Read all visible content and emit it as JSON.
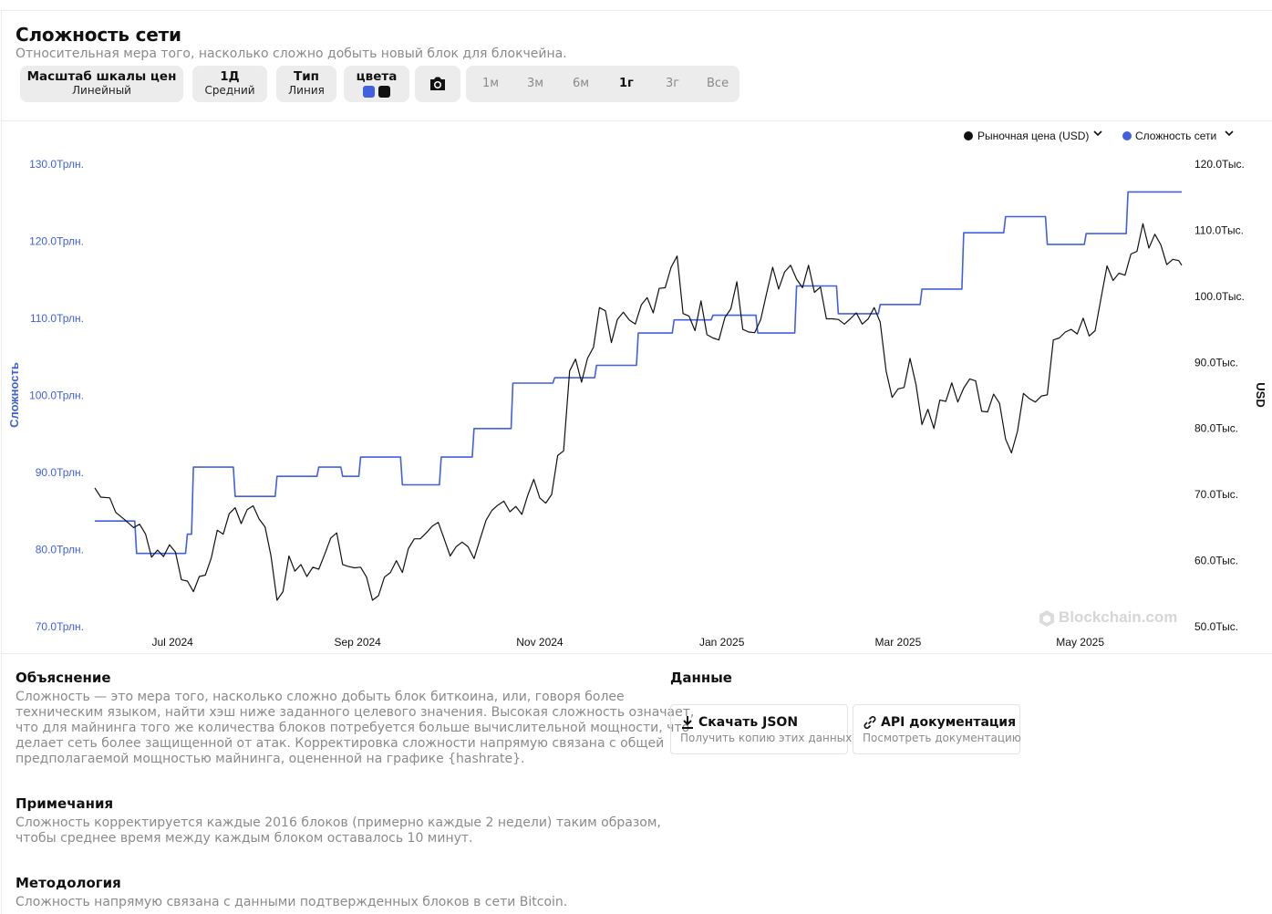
{
  "header": {
    "title": "Сложность сети",
    "subtitle": "Относительная мера того, насколько сложно добыть новый блок для блокчейна."
  },
  "controls": {
    "scale": {
      "label": "Масштаб шкалы цен",
      "value": "Линейный"
    },
    "period": {
      "label": "1Д",
      "value": "Средний"
    },
    "type": {
      "label": "Тип",
      "value": "Линия"
    },
    "colors": {
      "label": "цвета",
      "swatches": [
        "#4060e0",
        "#111111"
      ]
    },
    "camera_icon": "camera-icon",
    "ranges": [
      "1м",
      "3м",
      "6м",
      "1г",
      "3г",
      "Все"
    ],
    "active_range": "1г"
  },
  "legend": {
    "price": "Рыночная цена (USD)",
    "difficulty": "Сложность сети",
    "price_color": "#111111",
    "difficulty_color": "#4060e0"
  },
  "watermark": "Blockchain.com",
  "chart_data": {
    "type": "line",
    "x_ticks": [
      "Jul 2024",
      "Sep 2024",
      "Nov 2024",
      "Jan 2025",
      "Mar 2025",
      "May 2025"
    ],
    "x_range": [
      "2024-06-05",
      "2025-06-04"
    ],
    "grid": false,
    "legend_placement": "top-right",
    "left_axis": {
      "label": "Сложность",
      "unit": "Трлн.",
      "ticks": [
        "70.0Трлн.",
        "80.0Трлн.",
        "90.0Трлн.",
        "100.0Трлн.",
        "110.0Трлн.",
        "120.0Трлн.",
        "130.0Трлн."
      ],
      "range": [
        70,
        130
      ]
    },
    "right_axis": {
      "label": "USD",
      "unit": "Тыс.",
      "ticks": [
        "50.0Тыс.",
        "60.0Тыс.",
        "70.0Тыс.",
        "80.0Тыс.",
        "90.0Тыс.",
        "100.0Тыс.",
        "110.0Тыс.",
        "120.0Тыс."
      ],
      "range": [
        50,
        120
      ]
    },
    "series": [
      {
        "name": "Сложность сети",
        "axis": "left",
        "color": "#4060e0",
        "step": true,
        "points": [
          [
            "2024-06-05",
            83.7
          ],
          [
            "2024-06-19",
            79.5
          ],
          [
            "2024-07-06",
            82.0
          ],
          [
            "2024-07-08",
            90.7
          ],
          [
            "2024-07-22",
            86.9
          ],
          [
            "2024-08-05",
            89.5
          ],
          [
            "2024-08-19",
            90.7
          ],
          [
            "2024-08-27",
            89.5
          ],
          [
            "2024-09-02",
            92.0
          ],
          [
            "2024-09-16",
            88.4
          ],
          [
            "2024-09-29",
            92.0
          ],
          [
            "2024-10-10",
            95.7
          ],
          [
            "2024-10-23",
            101.6
          ],
          [
            "2024-11-06",
            102.3
          ],
          [
            "2024-11-20",
            103.9
          ],
          [
            "2024-12-04",
            108.1
          ],
          [
            "2024-12-16",
            109.8
          ],
          [
            "2024-12-29",
            110.4
          ],
          [
            "2025-01-13",
            108.1
          ],
          [
            "2025-01-26",
            114.2
          ],
          [
            "2025-02-09",
            110.6
          ],
          [
            "2025-02-23",
            111.8
          ],
          [
            "2025-03-09",
            113.8
          ],
          [
            "2025-03-23",
            121.1
          ],
          [
            "2025-04-06",
            123.2
          ],
          [
            "2025-04-20",
            119.6
          ],
          [
            "2025-05-03",
            121.0
          ],
          [
            "2025-05-17",
            126.4
          ],
          [
            "2025-06-04",
            126.4
          ]
        ]
      },
      {
        "name": "Рыночная цена (USD)",
        "axis": "right",
        "color": "#111111",
        "step": false,
        "points": [
          [
            "2024-06-05",
            71.0
          ],
          [
            "2024-06-07",
            69.6
          ],
          [
            "2024-06-10",
            69.5
          ],
          [
            "2024-06-12",
            67.3
          ],
          [
            "2024-06-15",
            66.2
          ],
          [
            "2024-06-18",
            65.0
          ],
          [
            "2024-06-20",
            65.5
          ],
          [
            "2024-06-22",
            64.0
          ],
          [
            "2024-06-24",
            60.5
          ],
          [
            "2024-06-26",
            61.6
          ],
          [
            "2024-06-28",
            60.6
          ],
          [
            "2024-06-30",
            62.4
          ],
          [
            "2024-07-02",
            61.3
          ],
          [
            "2024-07-04",
            57.1
          ],
          [
            "2024-07-06",
            56.9
          ],
          [
            "2024-07-08",
            55.3
          ],
          [
            "2024-07-10",
            57.6
          ],
          [
            "2024-07-12",
            57.8
          ],
          [
            "2024-07-14",
            60.4
          ],
          [
            "2024-07-16",
            64.6
          ],
          [
            "2024-07-18",
            64.0
          ],
          [
            "2024-07-20",
            67.1
          ],
          [
            "2024-07-22",
            68.0
          ],
          [
            "2024-07-24",
            65.6
          ],
          [
            "2024-07-26",
            67.7
          ],
          [
            "2024-07-28",
            68.3
          ],
          [
            "2024-07-30",
            66.3
          ],
          [
            "2024-08-01",
            65.1
          ],
          [
            "2024-08-03",
            60.7
          ],
          [
            "2024-08-05",
            54.0
          ],
          [
            "2024-08-07",
            55.3
          ],
          [
            "2024-08-09",
            60.7
          ],
          [
            "2024-08-11",
            58.4
          ],
          [
            "2024-08-13",
            59.4
          ],
          [
            "2024-08-15",
            57.6
          ],
          [
            "2024-08-17",
            59.0
          ],
          [
            "2024-08-19",
            58.7
          ],
          [
            "2024-08-21",
            61.0
          ],
          [
            "2024-08-23",
            63.4
          ],
          [
            "2024-08-25",
            64.2
          ],
          [
            "2024-08-27",
            59.4
          ],
          [
            "2024-08-29",
            59.1
          ],
          [
            "2024-08-31",
            58.9
          ],
          [
            "2024-09-02",
            59.0
          ],
          [
            "2024-09-04",
            57.5
          ],
          [
            "2024-09-06",
            54.0
          ],
          [
            "2024-09-08",
            54.7
          ],
          [
            "2024-09-10",
            57.5
          ],
          [
            "2024-09-12",
            58.2
          ],
          [
            "2024-09-14",
            60.0
          ],
          [
            "2024-09-16",
            58.2
          ],
          [
            "2024-09-18",
            61.8
          ],
          [
            "2024-09-20",
            63.3
          ],
          [
            "2024-09-22",
            63.3
          ],
          [
            "2024-09-24",
            64.2
          ],
          [
            "2024-09-26",
            65.2
          ],
          [
            "2024-09-28",
            65.8
          ],
          [
            "2024-09-30",
            63.3
          ],
          [
            "2024-10-02",
            60.7
          ],
          [
            "2024-10-04",
            62.1
          ],
          [
            "2024-10-06",
            62.8
          ],
          [
            "2024-10-08",
            62.1
          ],
          [
            "2024-10-10",
            60.3
          ],
          [
            "2024-10-12",
            63.2
          ],
          [
            "2024-10-14",
            66.1
          ],
          [
            "2024-10-16",
            67.6
          ],
          [
            "2024-10-18",
            68.4
          ],
          [
            "2024-10-20",
            69.0
          ],
          [
            "2024-10-22",
            67.4
          ],
          [
            "2024-10-24",
            68.2
          ],
          [
            "2024-10-26",
            67.0
          ],
          [
            "2024-10-28",
            69.9
          ],
          [
            "2024-10-30",
            72.3
          ],
          [
            "2024-11-01",
            69.5
          ],
          [
            "2024-11-03",
            68.7
          ],
          [
            "2024-11-05",
            70.0
          ],
          [
            "2024-11-07",
            75.9
          ],
          [
            "2024-11-09",
            76.6
          ],
          [
            "2024-11-11",
            88.7
          ],
          [
            "2024-11-13",
            90.5
          ],
          [
            "2024-11-15",
            87.0
          ],
          [
            "2024-11-17",
            90.6
          ],
          [
            "2024-11-19",
            92.3
          ],
          [
            "2024-11-21",
            98.3
          ],
          [
            "2024-11-23",
            97.8
          ],
          [
            "2024-11-25",
            93.0
          ],
          [
            "2024-11-27",
            96.5
          ],
          [
            "2024-11-29",
            97.6
          ],
          [
            "2024-12-01",
            96.4
          ],
          [
            "2024-12-03",
            95.8
          ],
          [
            "2024-12-05",
            98.7
          ],
          [
            "2024-12-07",
            99.8
          ],
          [
            "2024-12-09",
            97.5
          ],
          [
            "2024-12-11",
            101.2
          ],
          [
            "2024-12-13",
            101.3
          ],
          [
            "2024-12-15",
            104.4
          ],
          [
            "2024-12-17",
            106.1
          ],
          [
            "2024-12-19",
            97.4
          ],
          [
            "2024-12-21",
            97.0
          ],
          [
            "2024-12-23",
            94.8
          ],
          [
            "2024-12-25",
            99.3
          ],
          [
            "2024-12-27",
            94.2
          ],
          [
            "2024-12-29",
            93.7
          ],
          [
            "2024-12-31",
            93.4
          ],
          [
            "2025-01-02",
            96.8
          ],
          [
            "2025-01-04",
            98.1
          ],
          [
            "2025-01-06",
            102.2
          ],
          [
            "2025-01-08",
            95.0
          ],
          [
            "2025-01-10",
            94.6
          ],
          [
            "2025-01-12",
            94.5
          ],
          [
            "2025-01-14",
            96.5
          ],
          [
            "2025-01-16",
            100.5
          ],
          [
            "2025-01-18",
            104.4
          ],
          [
            "2025-01-20",
            101.1
          ],
          [
            "2025-01-22",
            103.7
          ],
          [
            "2025-01-24",
            104.7
          ],
          [
            "2025-01-26",
            102.6
          ],
          [
            "2025-01-28",
            101.3
          ],
          [
            "2025-01-30",
            104.7
          ],
          [
            "2025-02-01",
            100.6
          ],
          [
            "2025-02-03",
            101.4
          ],
          [
            "2025-02-05",
            96.6
          ],
          [
            "2025-02-07",
            96.6
          ],
          [
            "2025-02-09",
            96.5
          ],
          [
            "2025-02-11",
            95.8
          ],
          [
            "2025-02-13",
            96.6
          ],
          [
            "2025-02-15",
            97.5
          ],
          [
            "2025-02-17",
            95.8
          ],
          [
            "2025-02-19",
            96.6
          ],
          [
            "2025-02-21",
            98.3
          ],
          [
            "2025-02-23",
            96.1
          ],
          [
            "2025-02-25",
            88.7
          ],
          [
            "2025-02-27",
            84.7
          ],
          [
            "2025-03-01",
            86.0
          ],
          [
            "2025-03-03",
            86.2
          ],
          [
            "2025-03-05",
            90.6
          ],
          [
            "2025-03-07",
            86.7
          ],
          [
            "2025-03-09",
            80.6
          ],
          [
            "2025-03-11",
            82.9
          ],
          [
            "2025-03-13",
            80.0
          ],
          [
            "2025-03-15",
            84.3
          ],
          [
            "2025-03-17",
            84.1
          ],
          [
            "2025-03-19",
            86.9
          ],
          [
            "2025-03-21",
            84.0
          ],
          [
            "2025-03-23",
            86.1
          ],
          [
            "2025-03-25",
            87.5
          ],
          [
            "2025-03-27",
            87.2
          ],
          [
            "2025-03-29",
            82.6
          ],
          [
            "2025-03-31",
            82.5
          ],
          [
            "2025-04-02",
            85.2
          ],
          [
            "2025-04-04",
            83.8
          ],
          [
            "2025-04-06",
            78.4
          ],
          [
            "2025-04-08",
            76.3
          ],
          [
            "2025-04-10",
            79.6
          ],
          [
            "2025-04-12",
            85.3
          ],
          [
            "2025-04-14",
            84.5
          ],
          [
            "2025-04-16",
            84.0
          ],
          [
            "2025-04-18",
            84.9
          ],
          [
            "2025-04-20",
            85.1
          ],
          [
            "2025-04-22",
            93.4
          ],
          [
            "2025-04-24",
            93.7
          ],
          [
            "2025-04-26",
            94.6
          ],
          [
            "2025-04-28",
            95.0
          ],
          [
            "2025-04-30",
            94.3
          ],
          [
            "2025-05-02",
            96.7
          ],
          [
            "2025-05-04",
            94.0
          ],
          [
            "2025-05-06",
            94.8
          ],
          [
            "2025-05-08",
            99.8
          ],
          [
            "2025-05-10",
            104.6
          ],
          [
            "2025-05-12",
            102.4
          ],
          [
            "2025-05-14",
            103.5
          ],
          [
            "2025-05-16",
            103.2
          ],
          [
            "2025-05-18",
            106.4
          ],
          [
            "2025-05-20",
            106.8
          ],
          [
            "2025-05-22",
            111.0
          ],
          [
            "2025-05-24",
            107.3
          ],
          [
            "2025-05-26",
            109.4
          ],
          [
            "2025-05-28",
            107.8
          ],
          [
            "2025-05-30",
            104.8
          ],
          [
            "2025-06-01",
            105.6
          ],
          [
            "2025-06-03",
            105.4
          ],
          [
            "2025-06-04",
            104.7
          ]
        ]
      }
    ]
  },
  "sections": {
    "explanation": {
      "title": "Объяснение",
      "lines": [
        "Сложность — это мера того, насколько сложно добыть блок биткоина, или, говоря более",
        "техническим языком, найти хэш ниже заданного целевого значения. Высокая сложность означает,",
        "что для майнинга того же количества блоков потребуется больше вычислительной мощности, что",
        "делает сеть более защищенной от атак. Корректировка сложности напрямую связана с общей",
        "предполагаемой мощностью майнинга, оцененной на графике {hashrate}."
      ]
    },
    "notes": {
      "title": "Примечания",
      "lines": [
        "Сложность корректируется каждые 2016 блоков (примерно каждые 2 недели) таким образом,",
        "чтобы среднее время между каждым блоком оставалось 10 минут."
      ]
    },
    "methodology": {
      "title": "Методология",
      "lines": [
        "Сложность напрямую связана с данными подтвержденных блоков в сети Bitcoin."
      ]
    },
    "data": {
      "title": "Данные",
      "json": {
        "title": "Скачать JSON",
        "desc": "Получить копию этих данных",
        "icon": "download-icon"
      },
      "api": {
        "title": "API документация",
        "desc": "Посмотреть документацию",
        "icon": "link-icon"
      }
    }
  }
}
